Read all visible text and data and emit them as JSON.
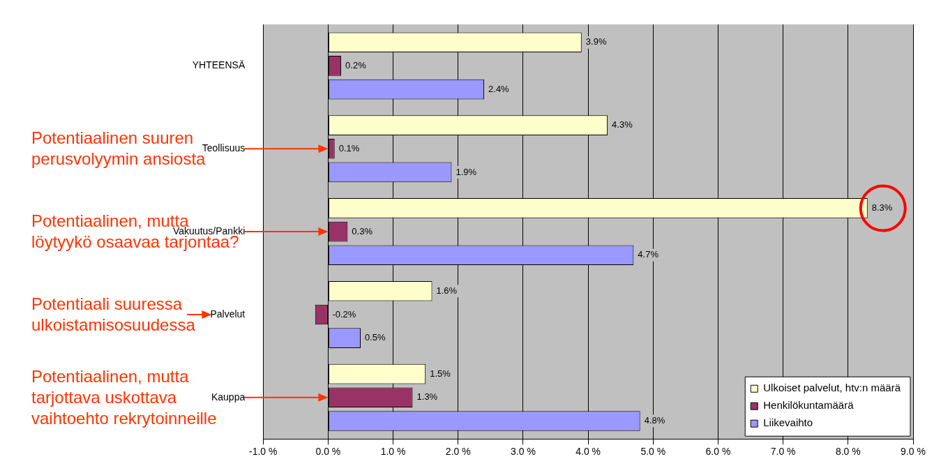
{
  "chart_data": {
    "type": "bar",
    "orientation": "horizontal",
    "categories": [
      "YHTEENSÄ",
      "Teollisuus",
      "Vakuutus/Pankki",
      "Palvelut",
      "Kauppa"
    ],
    "series": [
      {
        "name": "Ulkoiset palvelut, htv:n määrä",
        "color": "#ffffcc",
        "values": [
          3.9,
          4.3,
          8.3,
          1.6,
          1.5
        ],
        "value_labels": [
          "3.9%",
          "4.3%",
          "8.3%",
          "1.6%",
          "1.5%"
        ]
      },
      {
        "name": "Henkilökuntamäärä",
        "color": "#993366",
        "values": [
          0.2,
          0.1,
          0.3,
          -0.2,
          1.3
        ],
        "value_labels": [
          "0.2%",
          "0.1%",
          "0.3%",
          "-0.2%",
          "1.3%"
        ]
      },
      {
        "name": "Liikevaihto",
        "color": "#9999ff",
        "values": [
          2.4,
          1.9,
          4.7,
          0.5,
          4.8
        ],
        "value_labels": [
          "2.4%",
          "1.9%",
          "4.7%",
          "0.5%",
          "4.8%"
        ]
      }
    ],
    "xlim": [
      -1,
      9
    ],
    "xticks": [
      {
        "value": -1,
        "label": "-1.0 %"
      },
      {
        "value": 0,
        "label": "0.0 %"
      },
      {
        "value": 1,
        "label": "1.0 %"
      },
      {
        "value": 2,
        "label": "2.0 %"
      },
      {
        "value": 3,
        "label": "3.0 %"
      },
      {
        "value": 4,
        "label": "4.0 %"
      },
      {
        "value": 5,
        "label": "5.0 %"
      },
      {
        "value": 6,
        "label": "6.0 %"
      },
      {
        "value": 7,
        "label": "7.0 %"
      },
      {
        "value": 8,
        "label": "8.0 %"
      },
      {
        "value": 9,
        "label": "9.0 %"
      }
    ],
    "grid": "x",
    "legend": "bottom right",
    "annotations": [
      "Potentiaalinen suuren perusvolyymin ansiosta",
      "Potentiaalinen, mutta löytyykö osaavaa tarjontaa?",
      "Potentiaali suuressa ulkoistamisosuudessa",
      "Potentiaalinen, mutta tarjottava uskottava vaihtoehto rekrytoinneille"
    ]
  }
}
